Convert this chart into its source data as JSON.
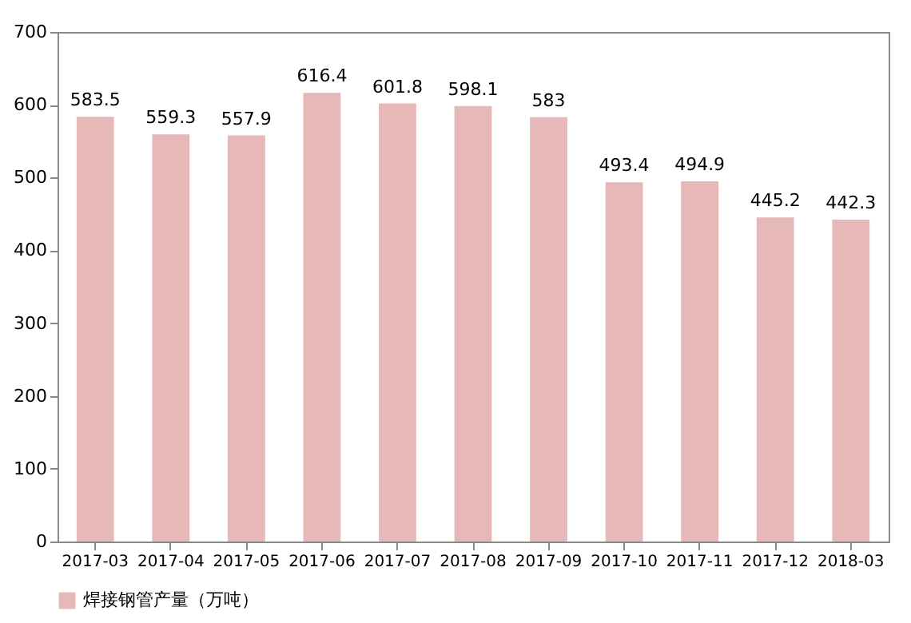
{
  "chart_data": {
    "type": "bar",
    "categories": [
      "2017-03",
      "2017-04",
      "2017-05",
      "2017-06",
      "2017-07",
      "2017-08",
      "2017-09",
      "2017-10",
      "2017-11",
      "2017-12",
      "2018-03"
    ],
    "series": [
      {
        "name": "焊接钢管产量（万吨）",
        "color": "#e6b9b8",
        "values": [
          583.5,
          559.3,
          557.9,
          616.4,
          601.8,
          598.1,
          583,
          493.4,
          494.9,
          445.2,
          442.3
        ]
      }
    ],
    "ylim": [
      0,
      700
    ],
    "yticks": [
      0,
      100,
      200,
      300,
      400,
      500,
      600,
      700
    ],
    "grid": false,
    "legend": "bottom left",
    "data_labels": true
  }
}
